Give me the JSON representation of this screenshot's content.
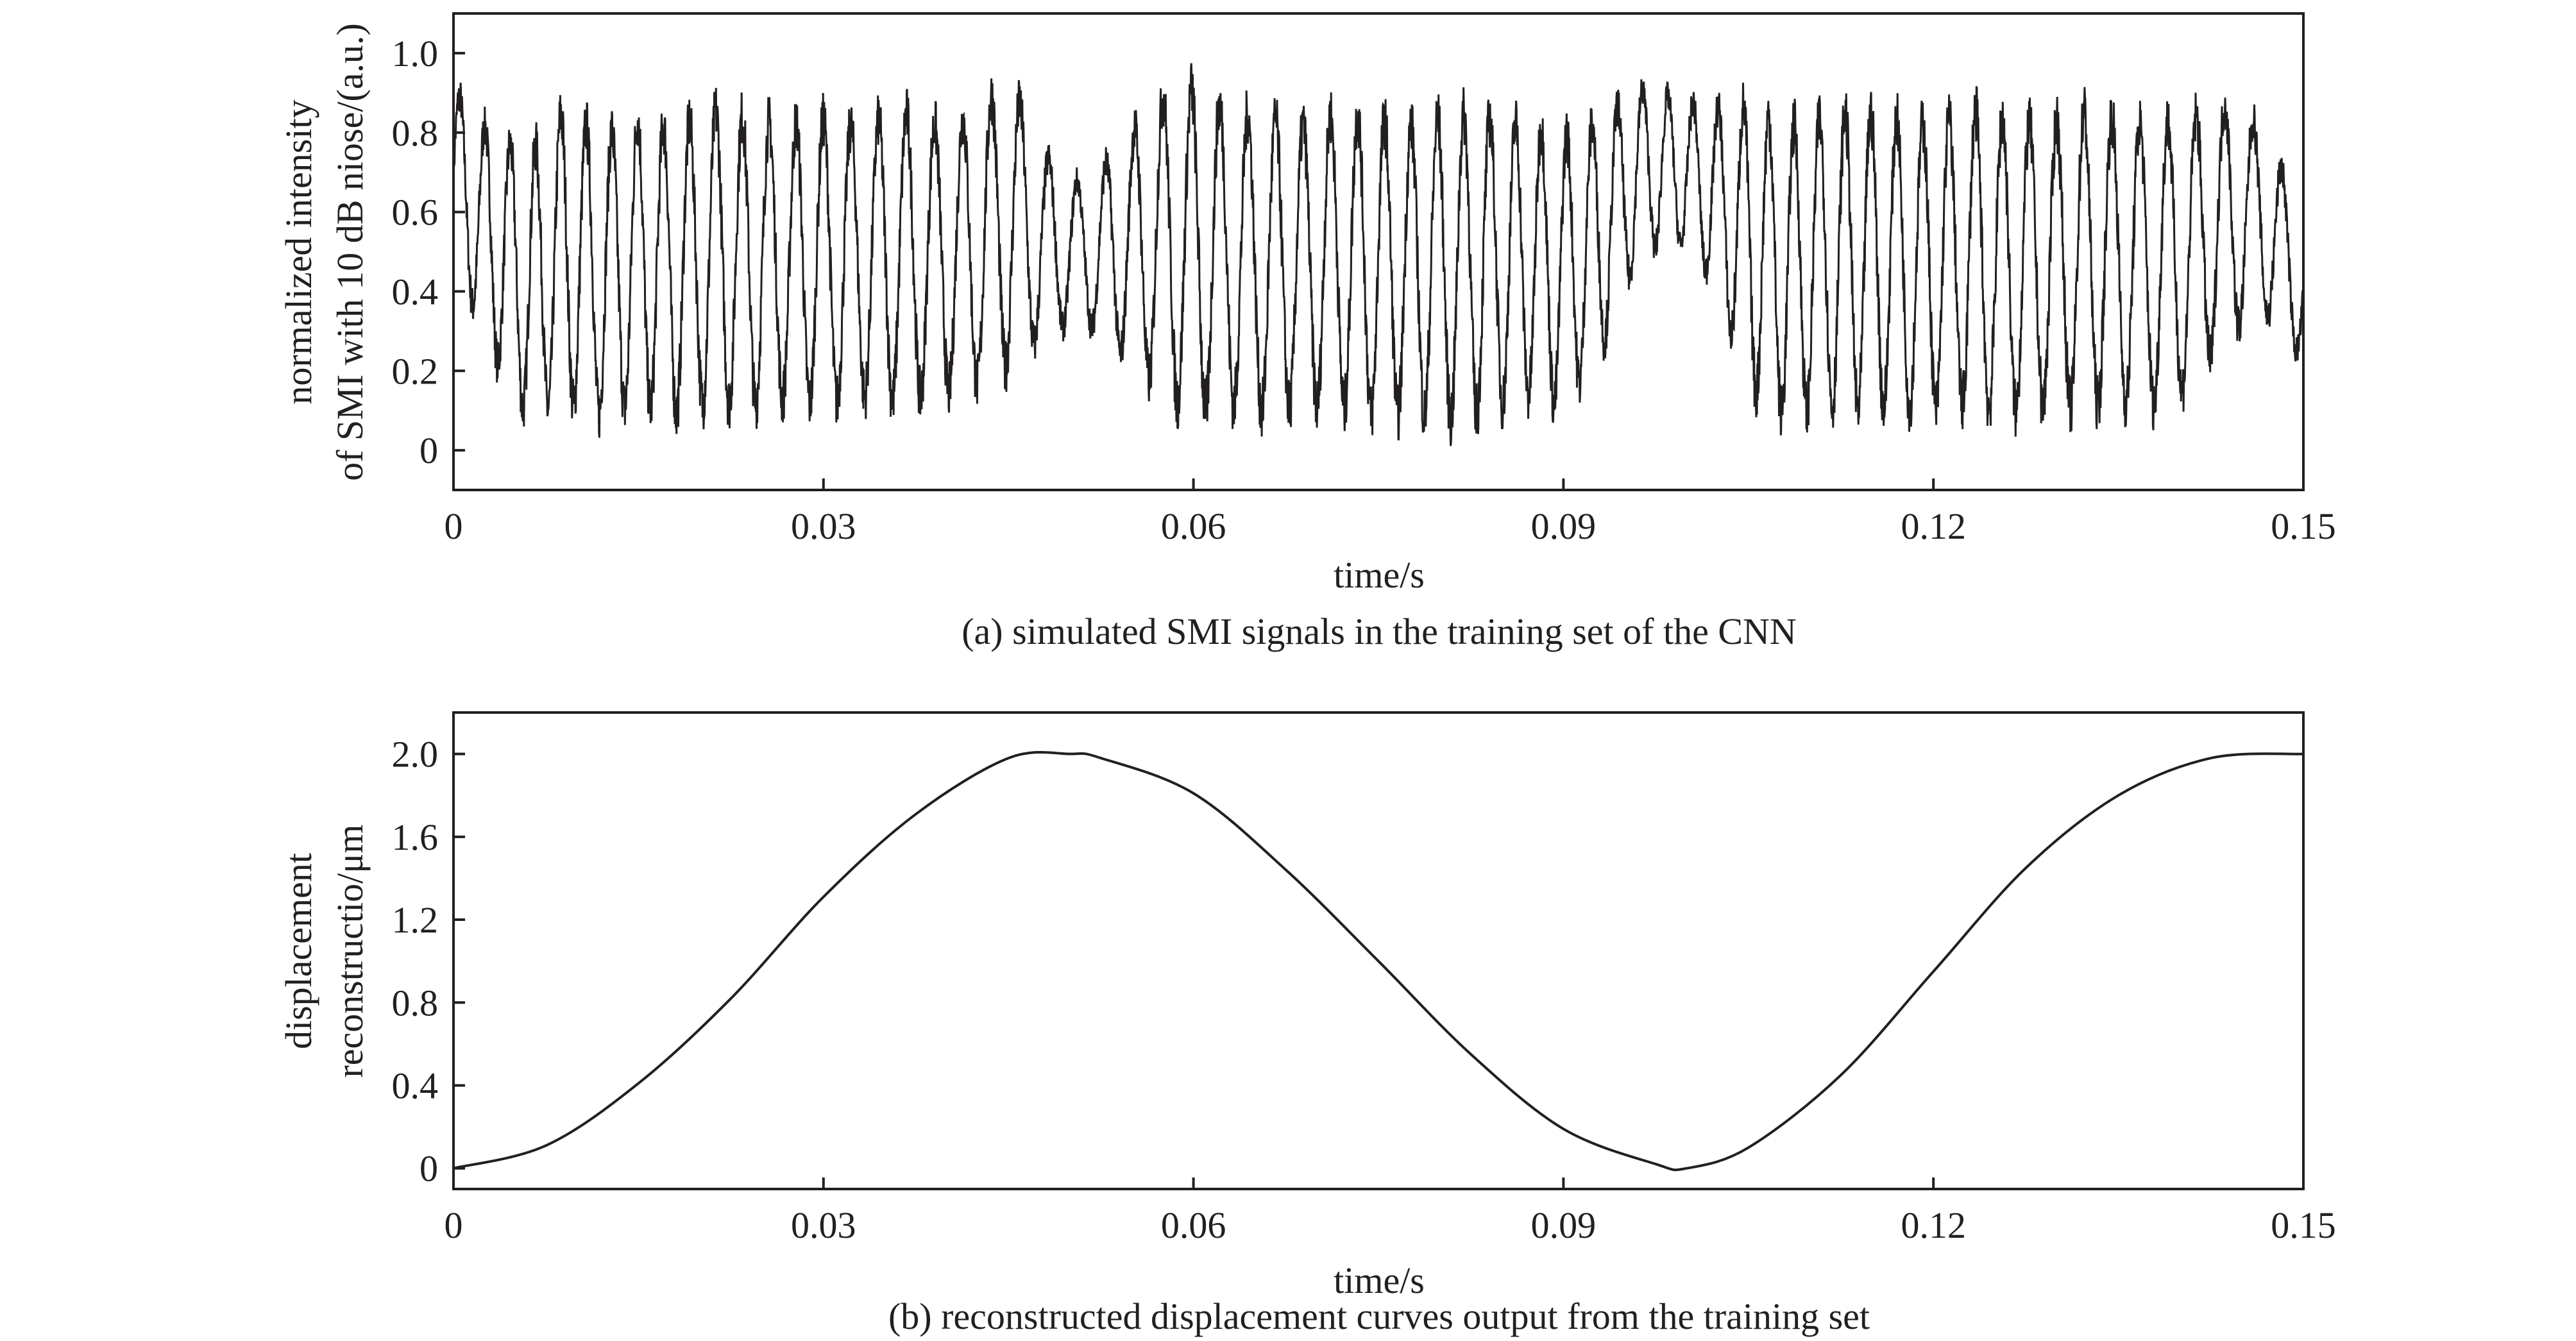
{
  "chart_data": [
    {
      "type": "line",
      "caption": "(a) simulated SMI signals in the training set of the CNN",
      "xlabel": "time/s",
      "ylabel_lines": [
        "normalized intensity",
        "of SMI with 10 dB niose/(a.u.)"
      ],
      "xlim": [
        0,
        0.15
      ],
      "ylim": [
        -0.1,
        1.1
      ],
      "xticks": [
        0,
        0.03,
        0.06,
        0.09,
        0.12,
        0.15
      ],
      "xtick_labels": [
        "0",
        "0.03",
        "0.06",
        "0.09",
        "0.12",
        "0.15"
      ],
      "yticks": [
        0,
        0.2,
        0.4,
        0.6,
        0.8,
        1.0
      ],
      "ytick_labels": [
        "0",
        "0.2",
        "0.4",
        "0.6",
        "0.8",
        "1.0"
      ],
      "grid": false,
      "legend": "none",
      "line_color": "#231f20",
      "series": [
        {
          "x": [
            0,
            0.003,
            0.006,
            0.009,
            0.012,
            0.015,
            0.018,
            0.021,
            0.024,
            0.027,
            0.03,
            0.033,
            0.036,
            0.039,
            0.042,
            0.045,
            0.048,
            0.051,
            0.054,
            0.057,
            0.06,
            0.063,
            0.066,
            0.069,
            0.072,
            0.075,
            0.078,
            0.081,
            0.084,
            0.087,
            0.09,
            0.093,
            0.096,
            0.099,
            0.102,
            0.105,
            0.108,
            0.111,
            0.114,
            0.117,
            0.12,
            0.123,
            0.126,
            0.129,
            0.132,
            0.135,
            0.138,
            0.141,
            0.144,
            0.147,
            0.15
          ],
          "y_min": [
            0.45,
            0.2,
            0.03,
            0.05,
            0.03,
            0.05,
            0.03,
            0.06,
            0.05,
            0.07,
            0.05,
            0.08,
            0.06,
            0.08,
            0.1,
            0.15,
            0.25,
            0.3,
            0.2,
            0.1,
            0.02,
            0.05,
            0.03,
            0.05,
            0.04,
            0.02,
            0.03,
            0.01,
            0.04,
            0.08,
            0.05,
            0.2,
            0.45,
            0.5,
            0.4,
            0.1,
            0.02,
            0.05,
            0.03,
            0.05,
            0.04,
            0.05,
            0.03,
            0.05,
            0.04,
            0.06,
            0.05,
            0.1,
            0.25,
            0.3,
            0.2
          ],
          "y_max": [
            0.95,
            0.85,
            0.8,
            0.92,
            0.85,
            0.9,
            0.87,
            0.92,
            0.9,
            0.88,
            0.9,
            0.87,
            0.92,
            0.88,
            0.9,
            1.0,
            0.78,
            0.7,
            0.8,
            0.95,
            0.98,
            0.92,
            0.9,
            0.88,
            0.92,
            0.9,
            0.88,
            0.92,
            0.9,
            0.88,
            0.85,
            0.88,
            0.95,
            0.92,
            0.9,
            0.93,
            0.88,
            0.9,
            0.92,
            0.9,
            0.88,
            0.92,
            0.9,
            0.88,
            0.92,
            0.9,
            0.88,
            0.9,
            0.92,
            0.85,
            0.6
          ]
        }
      ]
    },
    {
      "type": "line",
      "caption": "(b) reconstructed displacement curves output from the training set",
      "xlabel": "time/s",
      "ylabel_lines": [
        "displacement",
        "reconstructio/μm"
      ],
      "xlim": [
        0,
        0.15
      ],
      "ylim": [
        -0.1,
        2.2
      ],
      "xticks": [
        0,
        0.03,
        0.06,
        0.09,
        0.12,
        0.15
      ],
      "xtick_labels": [
        "0",
        "0.03",
        "0.06",
        "0.09",
        "0.12",
        "0.15"
      ],
      "yticks": [
        0,
        0.4,
        0.8,
        1.2,
        1.6,
        2.0
      ],
      "ytick_labels": [
        "0",
        "0.4",
        "0.8",
        "1.2",
        "1.6",
        "2.0"
      ],
      "grid": false,
      "legend": "none",
      "line_color": "#231f20",
      "series": [
        {
          "x": [
            0,
            0.0075,
            0.015,
            0.0225,
            0.03,
            0.0375,
            0.045,
            0.05,
            0.0525,
            0.06,
            0.0675,
            0.075,
            0.0825,
            0.09,
            0.0975,
            0.1,
            0.105,
            0.1125,
            0.12,
            0.1275,
            0.135,
            0.1425,
            0.15
          ],
          "y": [
            0.0,
            0.11,
            0.41,
            0.82,
            1.31,
            1.71,
            1.98,
            2.0,
            1.98,
            1.81,
            1.44,
            1.0,
            0.55,
            0.19,
            0.02,
            0.0,
            0.1,
            0.45,
            0.95,
            1.45,
            1.8,
            1.98,
            2.0
          ]
        }
      ]
    }
  ]
}
